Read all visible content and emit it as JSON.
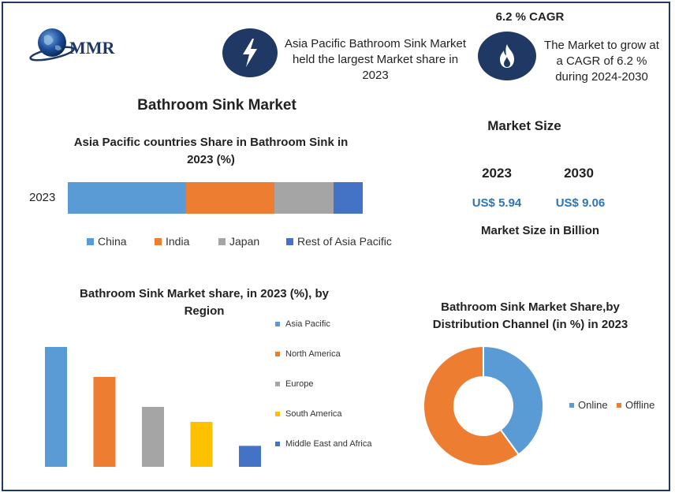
{
  "brand": {
    "logo_text": "MMR"
  },
  "header": {
    "info1": "Asia Pacific Bathroom Sink Market held the largest Market share in 2023",
    "cagr_title": "6.2 % CAGR",
    "info2": "The Market to grow at a CAGR of 6.2 % during 2024-2030"
  },
  "main_title": "Bathroom Sink Market",
  "market_size": {
    "title": "Market Size",
    "year1": "2023",
    "year2": "2030",
    "value1": "US$ 5.94",
    "value2": "US$ 9.06",
    "footer": "Market Size in Billion"
  },
  "colors": {
    "navy": "#1f3864",
    "blue": "#5b9bd5",
    "orange": "#ed7d31",
    "gray": "#a5a5a5",
    "yellow": "#ffc000",
    "darkblue": "#4472c4",
    "value_blue": "#2e75b6"
  },
  "icons": {
    "info1": "lightning-bolt-icon",
    "info2": "flame-icon"
  },
  "chart_data": [
    {
      "type": "bar",
      "orientation": "horizontal-stacked",
      "title": "Asia Pacific countries Share in Bathroom Sink in 2023 (%)",
      "categories": [
        "2023"
      ],
      "series": [
        {
          "name": "China",
          "values": [
            40
          ],
          "color": "#5b9bd5"
        },
        {
          "name": "India",
          "values": [
            30
          ],
          "color": "#ed7d31"
        },
        {
          "name": "Japan",
          "values": [
            20
          ],
          "color": "#a5a5a5"
        },
        {
          "name": "Rest of Asia Pacific",
          "values": [
            10
          ],
          "color": "#4472c4"
        }
      ],
      "legend": "bottom",
      "xlim": [
        0,
        100
      ]
    },
    {
      "type": "bar",
      "title": "Bathroom Sink Market share, in 2023 (%), by Region",
      "categories": [
        "Asia Pacific",
        "North America",
        "Europe",
        "South America",
        "Middle East and Africa"
      ],
      "values": [
        40,
        30,
        20,
        15,
        7
      ],
      "colors": [
        "#5b9bd5",
        "#ed7d31",
        "#a5a5a5",
        "#ffc000",
        "#4472c4"
      ],
      "legend": "right",
      "ylim": [
        0,
        40
      ]
    },
    {
      "type": "pie",
      "donut": true,
      "title": "Bathroom Sink Market Share,by Distribution Channel (in %) in 2023",
      "labels": [
        "Online",
        "Offline"
      ],
      "values": [
        40,
        60
      ],
      "colors": [
        "#5b9bd5",
        "#ed7d31"
      ],
      "legend": "right"
    }
  ]
}
